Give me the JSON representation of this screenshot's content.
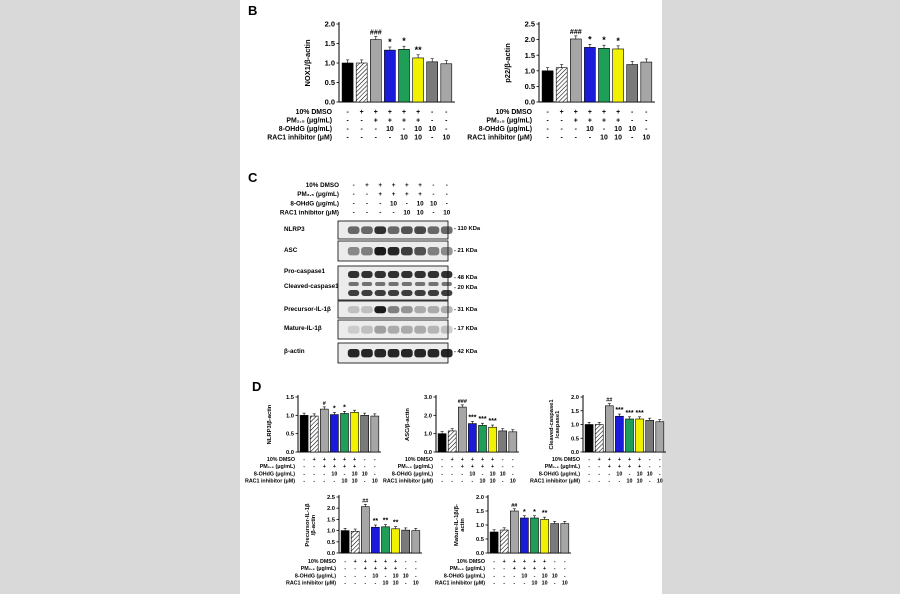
{
  "figure": {
    "panel_labels": {
      "b": "B",
      "c": "C",
      "d": "D"
    }
  },
  "treatment_labels": {
    "dmso": "10% DMSO",
    "pm": "PM₂.₅ (μg/mL)",
    "ohdg": "8-OHdG (μg/mL)",
    "rac1": "RAC1 inhibitor (μM)"
  },
  "treatment_matrix": {
    "dmso": [
      "-",
      "+",
      "+",
      "+",
      "+",
      "+",
      "-",
      "-"
    ],
    "pm": [
      "-",
      "-",
      "+",
      "+",
      "+",
      "+",
      "-",
      "-"
    ],
    "ohdg": [
      "-",
      "-",
      "-",
      "10",
      "-",
      "10",
      "10",
      "-"
    ],
    "rac1": [
      "-",
      "-",
      "-",
      "-",
      "10",
      "10",
      "-",
      "10"
    ]
  },
  "bar_colors": [
    "#000000",
    "hatch",
    "#a6a6a6",
    "#1a1adb",
    "#1f9e58",
    "#f2f200",
    "#7a7a7a",
    "#a6a6a6"
  ],
  "chart_data": [
    {
      "id": "b1",
      "type": "bar",
      "ylabel": "NOX1/β-actin",
      "ylim": [
        0,
        2.0
      ],
      "yticks": [
        "0.0",
        "0.5",
        "1.0",
        "1.5",
        "2.0"
      ],
      "values": [
        1.0,
        1.0,
        1.6,
        1.33,
        1.35,
        1.13,
        1.03,
        0.98
      ],
      "annotations": [
        "",
        "",
        "###",
        "*",
        "*",
        "**",
        "",
        ""
      ]
    },
    {
      "id": "b2",
      "type": "bar",
      "ylabel": "p22/β-actin",
      "ylim": [
        0,
        2.5
      ],
      "yticks": [
        "0.0",
        "0.5",
        "1.0",
        "1.5",
        "2.0",
        "2.5"
      ],
      "values": [
        1.0,
        1.1,
        2.02,
        1.75,
        1.72,
        1.7,
        1.2,
        1.28
      ],
      "annotations": [
        "",
        "",
        "###",
        "*",
        "*",
        "*",
        "",
        ""
      ]
    },
    {
      "id": "d1",
      "type": "bar",
      "ylabel": "NLRP3/β-actin",
      "ylim": [
        0,
        1.5
      ],
      "yticks": [
        "0.0",
        "0.5",
        "1.0",
        "1.5"
      ],
      "values": [
        1.0,
        0.98,
        1.17,
        1.02,
        1.05,
        1.08,
        1.0,
        0.98
      ],
      "annotations": [
        "",
        "",
        "#",
        "*",
        "*",
        "",
        "",
        ""
      ]
    },
    {
      "id": "d2",
      "type": "bar",
      "ylabel": "ASC/β-actin",
      "ylim": [
        0,
        3.0
      ],
      "yticks": [
        "0.0",
        "1.0",
        "2.0",
        "3.0"
      ],
      "values": [
        1.0,
        1.15,
        2.45,
        1.55,
        1.45,
        1.35,
        1.15,
        1.1
      ],
      "annotations": [
        "",
        "",
        "###",
        "***",
        "***",
        "***",
        "",
        ""
      ]
    },
    {
      "id": "d3",
      "type": "bar",
      "ylabel": "Cleaved-caspase1 /caspase1",
      "ylim": [
        0,
        2.0
      ],
      "yticks": [
        "0.0",
        "0.5",
        "1.0",
        "1.5",
        "2.0"
      ],
      "values": [
        1.0,
        1.0,
        1.68,
        1.3,
        1.2,
        1.2,
        1.15,
        1.1
      ],
      "annotations": [
        "",
        "",
        "##",
        "***",
        "***",
        "***",
        "",
        ""
      ]
    },
    {
      "id": "d4",
      "type": "bar",
      "ylabel": "Precursor-IL-1β /β-actin",
      "ylim": [
        0,
        2.5
      ],
      "yticks": [
        "0.0",
        "0.5",
        "1.0",
        "1.5",
        "2.0",
        "2.5"
      ],
      "values": [
        1.0,
        0.97,
        2.07,
        1.15,
        1.17,
        1.08,
        1.02,
        1.0
      ],
      "annotations": [
        "",
        "",
        "##",
        "**",
        "**",
        "**",
        "",
        ""
      ]
    },
    {
      "id": "d5",
      "type": "bar",
      "ylabel": "Mature-IL-1β/β- actin",
      "ylim": [
        0,
        2.0
      ],
      "yticks": [
        "0.0",
        "0.5",
        "1.0",
        "1.5",
        "2.0"
      ],
      "values": [
        0.75,
        0.82,
        1.5,
        1.25,
        1.25,
        1.2,
        1.05,
        1.05
      ],
      "annotations": [
        "",
        "",
        "##",
        "*",
        "*",
        "**",
        "",
        ""
      ]
    }
  ],
  "blot": {
    "proteins": [
      {
        "name": "NLRP3",
        "kda": "110 KDa"
      },
      {
        "name": "ASC",
        "kda": "21 KDa"
      },
      {
        "name": "Pro-caspase1",
        "kda": "48 KDa"
      },
      {
        "name": "Cleaved-caspase1",
        "kda": "20 KDa"
      },
      {
        "name": "Precursor-IL-1β",
        "kda": "31 KDa"
      },
      {
        "name": "Mature-IL-1β",
        "kda": "17 KDa"
      },
      {
        "name": "β-actin",
        "kda": "42 KDa"
      }
    ]
  }
}
